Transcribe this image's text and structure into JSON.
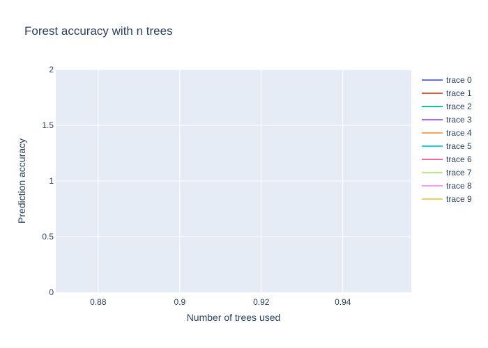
{
  "chart_data": {
    "type": "line",
    "title": "Forest accuracy with n trees",
    "xlabel": "Number of trees used",
    "ylabel": "Prediction accuracy",
    "xlim": [
      0.8696,
      0.9568
    ],
    "ylim": [
      0,
      2
    ],
    "xticks": [
      0.88,
      0.9,
      0.92,
      0.94
    ],
    "xtick_labels": [
      "0.88",
      "0.9",
      "0.92",
      "0.94"
    ],
    "yticks": [
      0,
      0.5,
      1,
      1.5,
      2
    ],
    "ytick_labels": [
      "0",
      "0.5",
      "1",
      "1.5",
      "2"
    ],
    "grid": true,
    "legend_position": "right",
    "plot_background": "#e5ecf6",
    "grid_color": "#ffffff",
    "series": [
      {
        "name": "trace 0",
        "color": "#636efa",
        "x": [],
        "y": []
      },
      {
        "name": "trace 1",
        "color": "#ef553b",
        "x": [],
        "y": []
      },
      {
        "name": "trace 2",
        "color": "#00cc96",
        "x": [],
        "y": []
      },
      {
        "name": "trace 3",
        "color": "#ab63fa",
        "x": [],
        "y": []
      },
      {
        "name": "trace 4",
        "color": "#ffa15a",
        "x": [],
        "y": []
      },
      {
        "name": "trace 5",
        "color": "#19d3f3",
        "x": [],
        "y": []
      },
      {
        "name": "trace 6",
        "color": "#ff6692",
        "x": [],
        "y": []
      },
      {
        "name": "trace 7",
        "color": "#b6e880",
        "x": [],
        "y": []
      },
      {
        "name": "trace 8",
        "color": "#ff97ff",
        "x": [],
        "y": []
      },
      {
        "name": "trace 9",
        "color": "#fecb52",
        "x": [],
        "y": []
      }
    ]
  }
}
